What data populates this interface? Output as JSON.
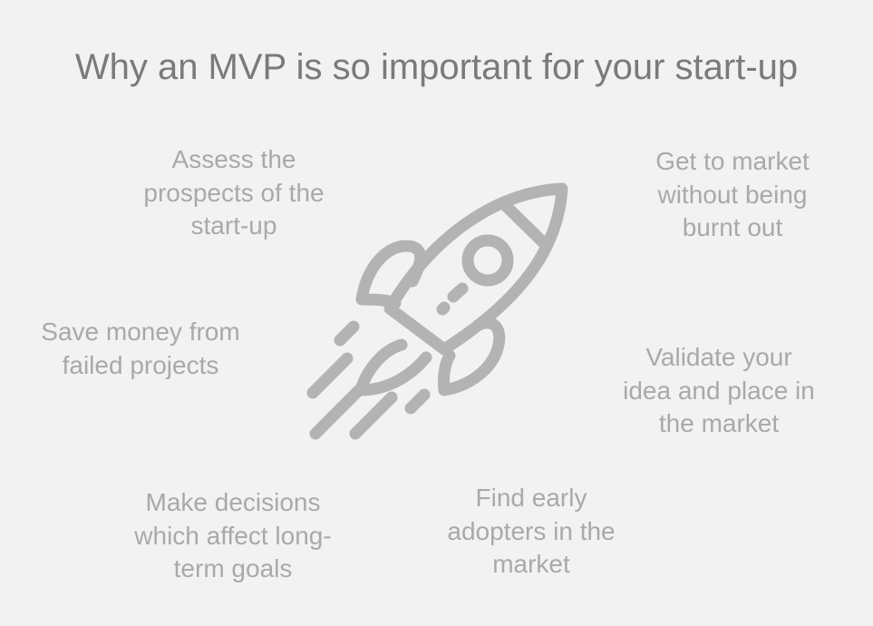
{
  "title": "Why an MVP is so important for your start-up",
  "icon": "rocket-icon",
  "colors": {
    "background": "#f2f2f2",
    "title": "#7a7a7a",
    "text": "#a9a9a9",
    "icon": "#b3b3b3"
  },
  "benefits": {
    "assess": {
      "lines": [
        "Assess the",
        "prospects of the",
        "start-up"
      ]
    },
    "market": {
      "lines": [
        "Get to market",
        "without being",
        "burnt out"
      ]
    },
    "save": {
      "lines": [
        "Save money from",
        "failed projects"
      ]
    },
    "validate": {
      "lines": [
        "Validate your",
        "idea and place in",
        "the market"
      ]
    },
    "decide": {
      "lines": [
        "Make decisions",
        "which affect long-",
        "term goals"
      ]
    },
    "adopters": {
      "lines": [
        "Find early",
        "adopters in the",
        "market"
      ]
    }
  }
}
